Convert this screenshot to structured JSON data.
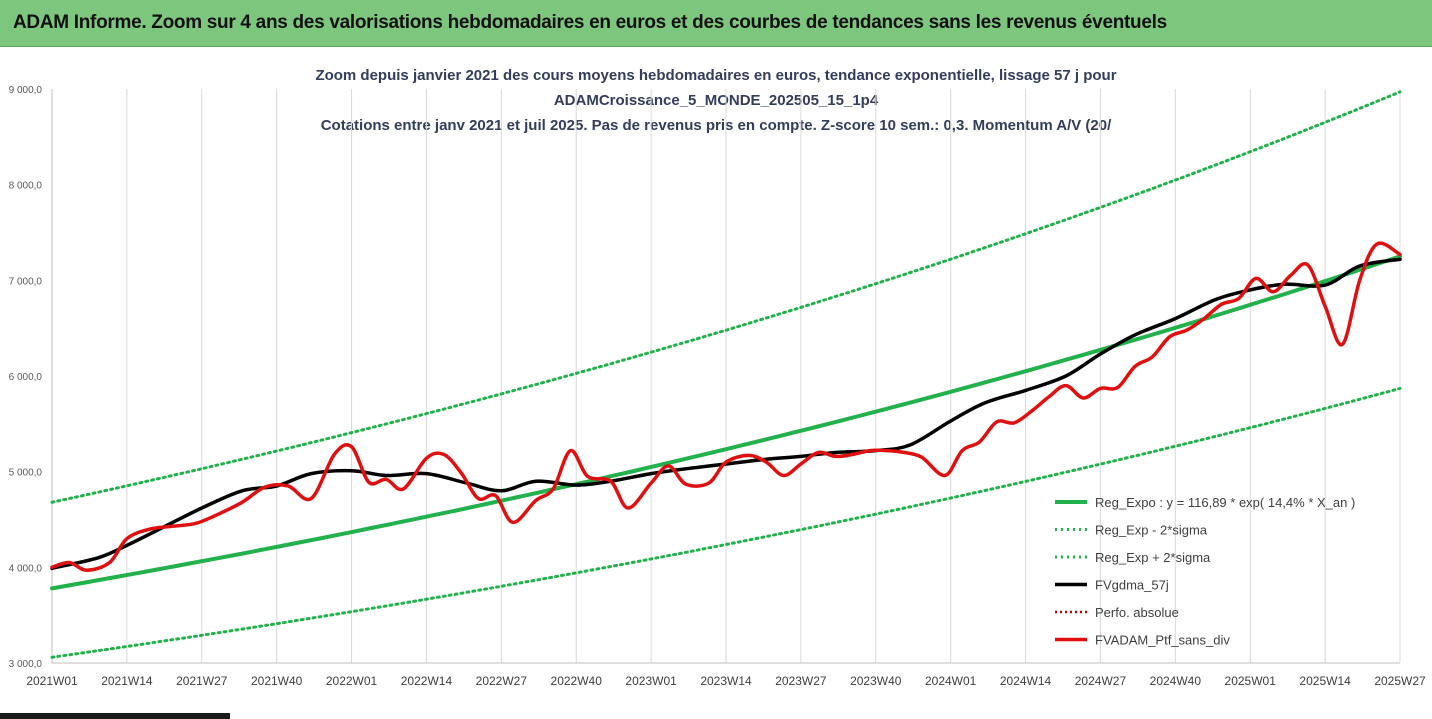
{
  "banner": {
    "title": "ADAM Informe. Zoom sur 4 ans des valorisations hebdomadaires en euros et des courbes de tendances sans les revenus éventuels"
  },
  "colors": {
    "banner": "#7dc67d",
    "regression": "#22b14c",
    "sigma_bands": "#22b14c",
    "moving_average": "#000000",
    "perfo_absolue": "#c00000",
    "portfolio": "#e01010"
  },
  "chart_data": {
    "type": "line",
    "title_lines": [
      "Zoom depuis janvier 2021 des cours moyens hebdomadaires  en euros, tendance exponentielle, lissage 57 j pour",
      "ADAMCroissance_5_MONDE_202505_15_1p4",
      "Cotations entre janv 2021 et juil 2025. Pas de revenus pris en compte. Z-score 10 sem.: 0,3. Momentum A/V (20/"
    ],
    "x_tick_labels": [
      "2021W01",
      "2021W14",
      "2021W27",
      "2021W40",
      "2022W01",
      "2022W14",
      "2022W27",
      "2022W40",
      "2023W01",
      "2023W14",
      "2023W27",
      "2023W40",
      "2024W01",
      "2024W14",
      "2024W27",
      "2024W40",
      "2025W01",
      "2025W14",
      "2025W27"
    ],
    "x_range_weeks": [
      0,
      234
    ],
    "y_tick_labels": [
      "3 000,0",
      "4 000,0",
      "5 000,0",
      "6 000,0",
      "7 000,0",
      "8 000,0",
      "9 000,0"
    ],
    "ylim": [
      3000,
      9000
    ],
    "grid": "vertical",
    "legend_position": "bottom-right",
    "series": [
      {
        "name": "Reg_Expo : y = 116,89 * exp( 14,4% *  X_an )",
        "style": "solid",
        "x": [
          0,
          234
        ],
        "y": [
          3780,
          7250
        ],
        "curve": "exponential"
      },
      {
        "name": "Reg_Exp - 2*sigma",
        "style": "dotted",
        "x": [
          0,
          234
        ],
        "y": [
          3060,
          5870
        ],
        "curve": "exponential"
      },
      {
        "name": "Reg_Exp + 2*sigma",
        "style": "dotted",
        "x": [
          0,
          234
        ],
        "y": [
          4680,
          8970
        ],
        "curve": "exponential"
      },
      {
        "name": "FVgdma_57j",
        "style": "solid",
        "x": [
          0,
          8,
          13,
          20,
          26,
          33,
          39,
          45,
          52,
          58,
          65,
          72,
          78,
          84,
          91,
          97,
          104,
          110,
          117,
          124,
          130,
          136,
          143,
          149,
          156,
          162,
          169,
          176,
          182,
          188,
          195,
          202,
          208,
          214,
          221,
          227,
          234
        ],
        "y": [
          3990,
          4100,
          4230,
          4440,
          4620,
          4800,
          4850,
          4980,
          5010,
          4960,
          4980,
          4880,
          4800,
          4900,
          4860,
          4900,
          4980,
          5030,
          5080,
          5130,
          5160,
          5200,
          5220,
          5280,
          5530,
          5720,
          5850,
          6000,
          6230,
          6430,
          6600,
          6800,
          6900,
          6960,
          6950,
          7150,
          7220
        ]
      },
      {
        "name": "Perfo. absolue",
        "style": "dotted",
        "x": [],
        "y": []
      },
      {
        "name": "FVADAM_Ptf_sans_div",
        "style": "solid",
        "x": [
          0,
          3,
          6,
          10,
          13,
          17,
          21,
          25,
          29,
          33,
          37,
          41,
          45,
          49,
          52,
          55,
          58,
          61,
          65,
          68,
          71,
          74,
          77,
          80,
          84,
          87,
          90,
          93,
          97,
          100,
          104,
          107,
          110,
          114,
          117,
          121,
          124,
          127,
          130,
          133,
          136,
          139,
          142,
          145,
          148,
          151,
          155,
          158,
          161,
          164,
          167,
          170,
          173,
          176,
          179,
          182,
          185,
          188,
          191,
          194,
          197,
          200,
          203,
          206,
          209,
          212,
          215,
          218,
          221,
          224,
          227,
          230,
          234
        ],
        "y": [
          4000,
          4050,
          3970,
          4050,
          4300,
          4400,
          4430,
          4460,
          4560,
          4680,
          4840,
          4850,
          4720,
          5180,
          5260,
          4890,
          4920,
          4820,
          5140,
          5180,
          4990,
          4720,
          4750,
          4470,
          4700,
          4820,
          5220,
          4950,
          4900,
          4620,
          4880,
          5060,
          4870,
          4880,
          5100,
          5170,
          5100,
          4960,
          5080,
          5200,
          5160,
          5180,
          5220,
          5220,
          5200,
          5150,
          4960,
          5220,
          5310,
          5520,
          5510,
          5630,
          5780,
          5900,
          5770,
          5870,
          5880,
          6100,
          6200,
          6410,
          6480,
          6600,
          6750,
          6810,
          7020,
          6880,
          7050,
          7160,
          6730,
          6330,
          7000,
          7380,
          7270
        ]
      }
    ]
  }
}
